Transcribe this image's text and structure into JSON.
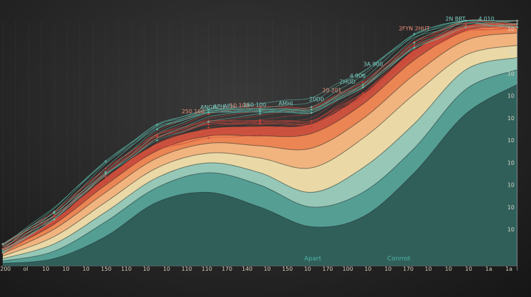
{
  "chart_data": {
    "type": "area",
    "title": "",
    "xlabel": "",
    "ylabel": "",
    "grid": true,
    "legend": "none",
    "xlim": [
      0,
      100
    ],
    "ylim": [
      0,
      100
    ],
    "x_tick_labels": [
      "200",
      "ol",
      "10",
      "10",
      "10",
      "150",
      "110",
      "10",
      "10",
      "110",
      "110",
      "170",
      "140",
      "10",
      "150",
      "10",
      "170",
      "100",
      "10",
      "10",
      "170",
      "10",
      "10",
      "10",
      "1a",
      "1a"
    ],
    "y_tick_labels": [
      "10",
      "10",
      "10",
      "10",
      "10",
      "10",
      "10",
      "10",
      "10",
      "10"
    ],
    "area_labels": [
      "Apart",
      "Conrrot"
    ],
    "annotations": [
      "250 160",
      "ANGH",
      "APH",
      "APH",
      "10 100",
      "160 100",
      "AMHI",
      "20D0",
      "20 201",
      "2HUD",
      "4 900",
      "3A 900",
      "2FYN 2HUT",
      "2N BRT",
      "4 010"
    ],
    "colors": {
      "background": "#262626",
      "teal_dark": "#2e5a55",
      "teal": "#4f9a90",
      "teal_light": "#8ec6b8",
      "cream": "#e9dca9",
      "peach": "#f1b883",
      "orange": "#ee8a55",
      "red": "#d8553f",
      "line_red": "#c9453a",
      "line_teal": "#5fc7b5"
    },
    "series": [
      {
        "layer": "teal-dark",
        "x": [
          0,
          10,
          20,
          30,
          40,
          50,
          60,
          70,
          80,
          90,
          100
        ],
        "y": [
          1,
          3,
          12,
          26,
          30,
          24,
          16,
          20,
          38,
          62,
          74
        ]
      },
      {
        "layer": "teal",
        "x": [
          0,
          10,
          20,
          30,
          40,
          50,
          60,
          70,
          80,
          90,
          100
        ],
        "y": [
          2,
          6,
          18,
          32,
          38,
          33,
          24,
          30,
          48,
          72,
          80
        ]
      },
      {
        "layer": "teal-light",
        "x": [
          0,
          10,
          20,
          30,
          40,
          50,
          60,
          70,
          80,
          90,
          100
        ],
        "y": [
          3,
          9,
          22,
          36,
          42,
          38,
          30,
          40,
          58,
          80,
          85
        ]
      },
      {
        "layer": "cream",
        "x": [
          0,
          10,
          20,
          30,
          40,
          50,
          60,
          70,
          80,
          90,
          100
        ],
        "y": [
          4,
          12,
          26,
          40,
          46,
          44,
          40,
          52,
          70,
          86,
          90
        ]
      },
      {
        "layer": "peach",
        "x": [
          0,
          10,
          20,
          30,
          40,
          50,
          60,
          70,
          80,
          90,
          100
        ],
        "y": [
          5,
          15,
          30,
          44,
          50,
          49,
          48,
          60,
          78,
          92,
          95
        ]
      },
      {
        "layer": "orange",
        "x": [
          0,
          10,
          20,
          30,
          40,
          50,
          60,
          70,
          80,
          90,
          100
        ],
        "y": [
          6,
          17,
          33,
          47,
          53,
          53,
          54,
          66,
          84,
          96,
          98
        ]
      },
      {
        "layer": "red",
        "x": [
          0,
          10,
          20,
          30,
          40,
          50,
          60,
          70,
          80,
          90,
          100
        ],
        "y": [
          7,
          19,
          36,
          50,
          56,
          57,
          58,
          70,
          88,
          98,
          99
        ]
      }
    ],
    "line_bundles": [
      {
        "color_key": "line_red",
        "count": 14,
        "amplitude": 9
      },
      {
        "color_key": "line_teal",
        "count": 9,
        "amplitude": 6
      }
    ]
  }
}
